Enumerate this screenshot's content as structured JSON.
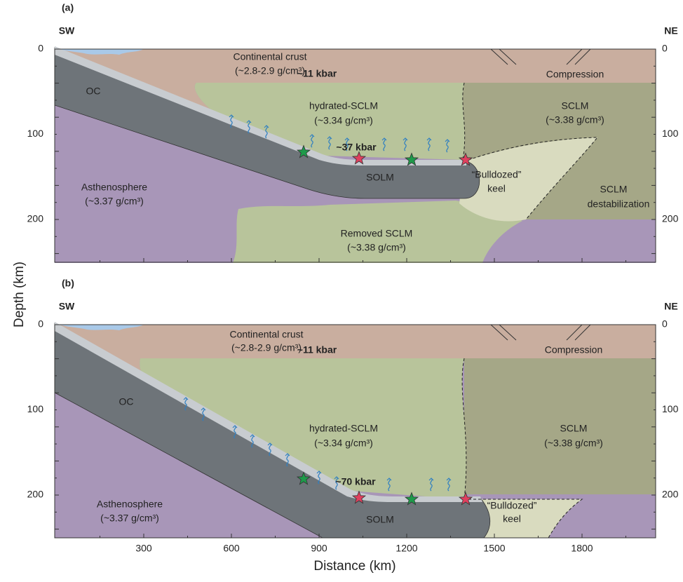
{
  "y_axis": {
    "label": "Depth (km)"
  },
  "x_axis": {
    "label": "Distance (km)",
    "ticks": [
      "300",
      "600",
      "900",
      "1200",
      "1500",
      "1800"
    ]
  },
  "panels": [
    {
      "label": "(a)",
      "left_end": "SW",
      "right_end": "NE",
      "y_ticks": [
        "0",
        "100",
        "200"
      ],
      "labels": [
        "Continental crust",
        "(~2.8-2.9 g/cm³)",
        "~11 kbar",
        "Compression",
        "OC",
        "hydrated-SCLM",
        "(~3.34 g/cm³)",
        "SCLM",
        "(~3.38 g/cm³)",
        "~37 kbar",
        "SOLM",
        "“Bulldozed”",
        "keel",
        "SCLM",
        "destabilization",
        "Asthenosphere",
        "(~3.37 g/cm³)",
        "Removed SCLM",
        "(~3.38 g/cm³)"
      ]
    },
    {
      "label": "(b)",
      "left_end": "SW",
      "right_end": "NE",
      "y_ticks": [
        "0",
        "100",
        "200"
      ],
      "labels": [
        "Continental crust",
        "(~2.8-2.9 g/cm³)",
        "~11 kbar",
        "Compression",
        "OC",
        "hydrated-SCLM",
        "(~3.34 g/cm³)",
        "SCLM",
        "(~3.38 g/cm³)",
        "~70 kbar",
        "SOLM",
        "“Bulldozed”",
        "keel",
        "Asthenosphere",
        "(~3.37 g/cm³)"
      ]
    }
  ]
}
